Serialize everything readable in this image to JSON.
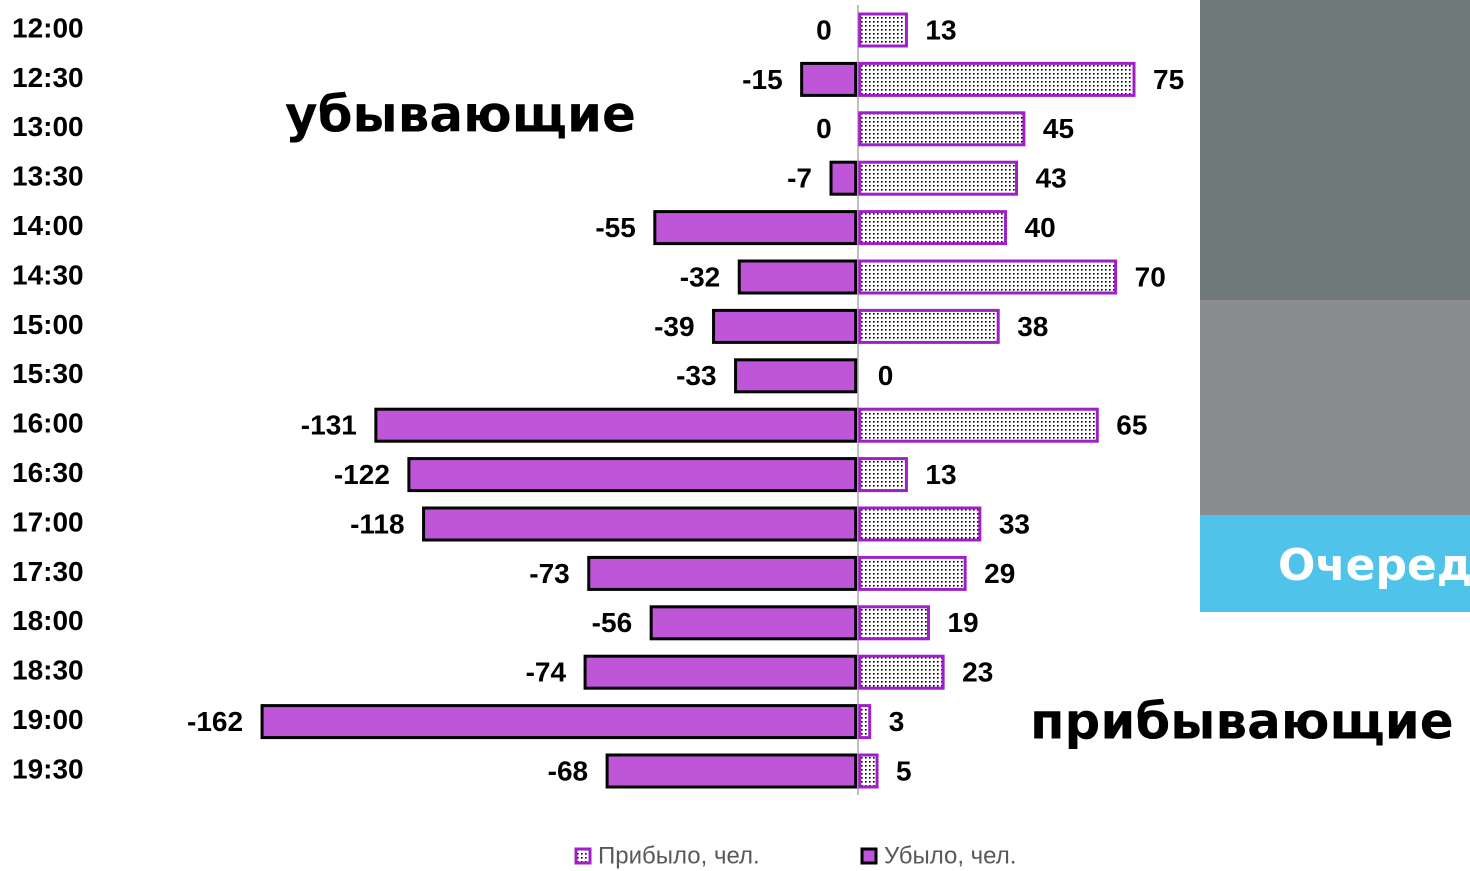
{
  "chart_data": {
    "type": "diverging-bar",
    "categories": [
      "12:00",
      "12:30",
      "13:00",
      "13:30",
      "14:00",
      "14:30",
      "15:00",
      "15:30",
      "16:00",
      "16:30",
      "17:00",
      "17:30",
      "18:00",
      "18:30",
      "19:00",
      "19:30"
    ],
    "series": [
      {
        "name": "Прибыло, чел.",
        "color": "#a020c8",
        "values": [
          13,
          75,
          45,
          43,
          40,
          70,
          38,
          0,
          65,
          13,
          33,
          29,
          19,
          23,
          3,
          5
        ]
      },
      {
        "name": "Убыло, чел.",
        "color": "#bf55d8",
        "values": [
          0,
          -15,
          0,
          -7,
          -55,
          -32,
          -39,
          -33,
          -131,
          -122,
          -118,
          -73,
          -56,
          -74,
          -162,
          -68
        ]
      }
    ],
    "xlim": [
      -180,
      160
    ],
    "annotations": [
      "убывающие",
      "прибывающие",
      "Очеред"
    ]
  }
}
